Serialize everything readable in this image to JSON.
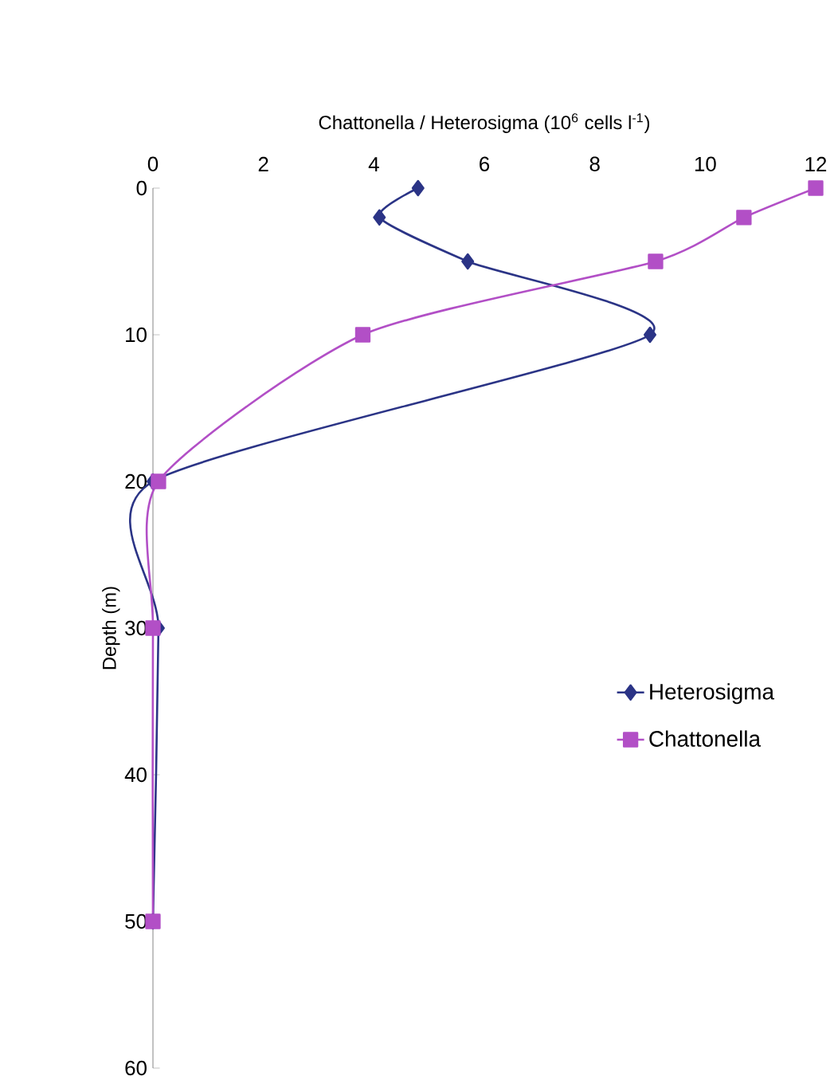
{
  "chart_data": {
    "type": "line",
    "xlabel": "Chattonella / Heterosigma (10$^{6}$ cells l$^{-1}$)",
    "ylabel": "Depth (m)",
    "xlim": [
      0,
      12
    ],
    "xticks": [
      0,
      2,
      4,
      6,
      8,
      10,
      12
    ],
    "ylim": [
      60,
      0
    ],
    "yticks": [
      0,
      10,
      20,
      30,
      40,
      50,
      60
    ],
    "legend": "right",
    "grid": false,
    "series": [
      {
        "name": "Heterosigma",
        "color": "#2b3486",
        "marker": "diamond",
        "x": [
          4.8,
          4.1,
          5.7,
          9.0,
          0,
          0.1,
          0
        ],
        "values": [
          0,
          2,
          5,
          10,
          20,
          30,
          50
        ]
      },
      {
        "name": "Chattonella",
        "color": "#b24fc6",
        "marker": "square",
        "x": [
          12,
          10.7,
          9.1,
          3.8,
          0.1,
          0,
          0
        ],
        "values": [
          0,
          2,
          5,
          10,
          20,
          30,
          50
        ]
      }
    ]
  }
}
